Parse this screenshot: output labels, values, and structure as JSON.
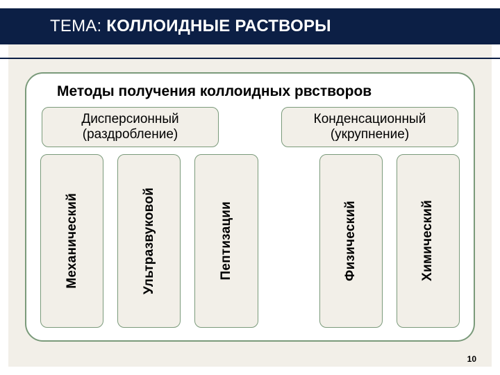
{
  "title": {
    "prefix": "ТЕМА: ",
    "main": "КОЛЛОИДНЫЕ РАСТВОРЫ"
  },
  "subtitle": "Методы получения коллоидных рвстворов",
  "groups": {
    "left": {
      "line1": "Дисперсионный",
      "line2": "(раздробление)"
    },
    "right": {
      "line1": "Конденсационный",
      "line2": "(укрупнение)"
    }
  },
  "methods": {
    "mechanical": "Механический",
    "ultrasound": "Ультразвуковой",
    "peptization": "Пептизации",
    "physical": "Физический",
    "chemical": "Химический"
  },
  "styling": {
    "slide_bg": "#f2efe8",
    "dark_bar": "#0c1f45",
    "panel_border": "#7a9a7a",
    "panel_bg": "#ffffff",
    "box_bg": "#f2efe8",
    "box_border": "#7a9a7a",
    "corner_radius": 26,
    "box_radius": 10,
    "title_fontsize": 24,
    "subtitle_fontsize": 21,
    "label_fontsize": 19
  },
  "page_number": "10"
}
